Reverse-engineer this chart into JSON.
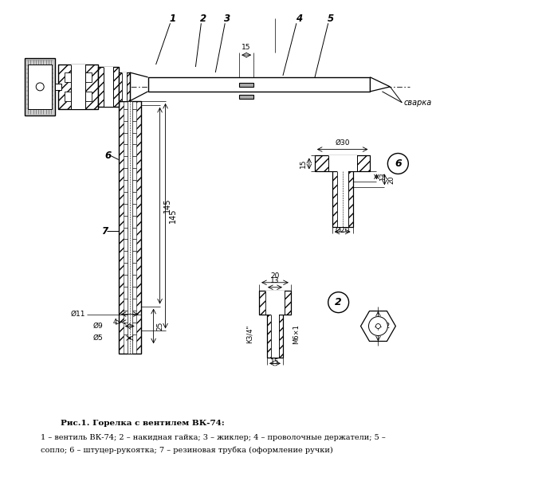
{
  "title": "Рис.1. Горелка с вентилем ВК-74:",
  "caption_line1": "1 – вентиль ВК-74; 2 – накидная гайка; 3 – жиклер; 4 – проволочные держатели; 5 –",
  "caption_line2": "сопло; 6 – штуцер-рукоятка; 7 – резиновая трубка (оформление ручки)",
  "bg_color": "#ffffff"
}
